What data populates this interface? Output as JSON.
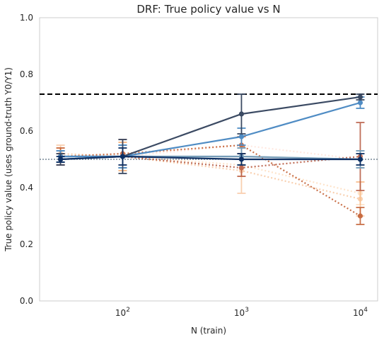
{
  "chart_data": {
    "type": "line",
    "title": "DRF: True policy value vs N",
    "xlabel": "N (train)",
    "ylabel": "True policy value (uses ground-truth Y0/Y1)",
    "x_scale": "log",
    "xlim": [
      20,
      14000
    ],
    "ylim": [
      0,
      1.0
    ],
    "x_ticks": [
      {
        "value": 100,
        "base": "10",
        "exp": "2"
      },
      {
        "value": 1000,
        "base": "10",
        "exp": "3"
      },
      {
        "value": 10000,
        "base": "10",
        "exp": "4"
      }
    ],
    "y_ticks": [
      {
        "value": 0.0,
        "label": "0.0"
      },
      {
        "value": 0.2,
        "label": "0.2"
      },
      {
        "value": 0.4,
        "label": "0.4"
      },
      {
        "value": 0.6,
        "label": "0.6"
      },
      {
        "value": 0.8,
        "label": "0.8"
      },
      {
        "value": 1.0,
        "label": "1.0"
      }
    ],
    "grid": false,
    "x": [
      30,
      100,
      1000,
      10000
    ],
    "reference_lines": [
      {
        "value": 0.73,
        "color": "#000000",
        "style": "dashed"
      },
      {
        "value": 0.5,
        "color": "#5a6f80",
        "style": "dotted"
      }
    ],
    "series": [
      {
        "values": [
          0.51,
          0.51,
          0.55,
          0.5
        ],
        "err": [
          0.03,
          0.05,
          0.03,
          0.03
        ],
        "color": "#ffb69a",
        "opacity": 0.3,
        "style": "dotted"
      },
      {
        "values": [
          0.51,
          0.51,
          0.48,
          0.38
        ],
        "err": [
          0.03,
          0.05,
          0.04,
          0.04
        ],
        "color": "#fdb068",
        "opacity": 0.35,
        "style": "dotted"
      },
      {
        "values": [
          0.52,
          0.51,
          0.46,
          0.36
        ],
        "err": [
          0.03,
          0.05,
          0.08,
          0.06
        ],
        "color": "#f08a3a",
        "opacity": 0.4,
        "style": "dotted"
      },
      {
        "values": [
          0.51,
          0.52,
          0.55,
          0.3
        ],
        "err": [
          0.03,
          0.05,
          0.03,
          0.03
        ],
        "color": "#c0582a",
        "opacity": 0.85,
        "style": "dotted"
      },
      {
        "values": [
          0.5,
          0.51,
          0.47,
          0.51
        ],
        "err": [
          0.02,
          0.04,
          0.03,
          0.12
        ],
        "color": "#b5553c",
        "opacity": 0.85,
        "style": "dotted"
      },
      {
        "values": [
          0.51,
          0.51,
          0.51,
          0.5
        ],
        "err": [
          0.02,
          0.04,
          0.03,
          0.03
        ],
        "color": "#a9cce3",
        "opacity": 0.9,
        "style": "solid"
      },
      {
        "values": [
          0.51,
          0.51,
          0.51,
          0.5
        ],
        "err": [
          0.02,
          0.04,
          0.03,
          0.03
        ],
        "color": "#6f97b3",
        "opacity": 0.9,
        "style": "solid"
      },
      {
        "values": [
          0.51,
          0.51,
          0.58,
          0.7
        ],
        "err": [
          0.02,
          0.04,
          0.03,
          0.02
        ],
        "color": "#4f8cc4",
        "opacity": 1.0,
        "style": "solid"
      },
      {
        "values": [
          0.5,
          0.51,
          0.66,
          0.72
        ],
        "err": [
          0.02,
          0.06,
          0.07,
          0.01
        ],
        "color": "#3b4a63",
        "opacity": 1.0,
        "style": "solid"
      },
      {
        "values": [
          0.5,
          0.51,
          0.5,
          0.5
        ],
        "err": [
          0.01,
          0.03,
          0.02,
          0.02
        ],
        "color": "#0d2f63",
        "opacity": 1.0,
        "style": "solid"
      }
    ]
  }
}
